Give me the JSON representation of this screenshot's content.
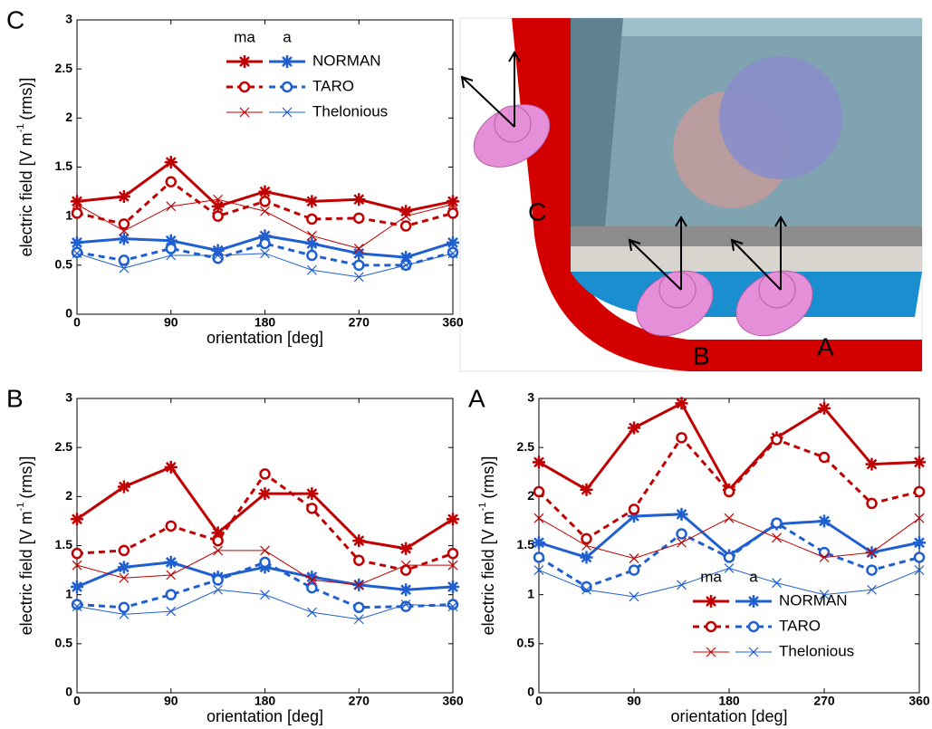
{
  "chart_data": [
    {
      "type": "line",
      "panel_label": "C",
      "x_label": "orientation [deg]",
      "y_label": {
        "text": "electric field [V m",
        "sup": "-1",
        "tail": "(rms)]"
      },
      "x": [
        0,
        45,
        90,
        135,
        180,
        225,
        270,
        315,
        360
      ],
      "xlim": [
        0,
        360
      ],
      "xticks": [
        0,
        90,
        180,
        270,
        360
      ],
      "ylim": [
        0,
        3
      ],
      "yticks": [
        0,
        0.5,
        1,
        1.5,
        2,
        2.5,
        3
      ],
      "legend": "upper right",
      "legend_columns": [
        {
          "label": "ma",
          "color": "#c00000"
        },
        {
          "label": "a",
          "color": "#1f5fd0"
        }
      ],
      "series": [
        {
          "name": "NORMAN",
          "marker": "star",
          "dash": "solid",
          "width": 3,
          "values": [
            [
              1.15,
              1.2,
              1.55,
              1.1,
              1.25,
              1.15,
              1.17,
              1.05,
              1.15
            ],
            [
              0.73,
              0.77,
              0.75,
              0.65,
              0.8,
              0.72,
              0.62,
              0.58,
              0.73
            ]
          ]
        },
        {
          "name": "TARO",
          "marker": "circle",
          "dash": "dashed",
          "width": 3,
          "values": [
            [
              1.03,
              0.92,
              1.35,
              1.0,
              1.15,
              0.97,
              0.98,
              0.9,
              1.03
            ],
            [
              0.63,
              0.55,
              0.67,
              0.57,
              0.72,
              0.6,
              0.5,
              0.5,
              0.63
            ]
          ]
        },
        {
          "name": "Thelonious",
          "marker": "x",
          "dash": "solid",
          "width": 1,
          "values": [
            [
              1.12,
              0.85,
              1.1,
              1.17,
              1.05,
              0.8,
              0.67,
              1.0,
              1.12
            ],
            [
              0.62,
              0.47,
              0.6,
              0.6,
              0.62,
              0.45,
              0.38,
              0.5,
              0.62
            ]
          ]
        }
      ]
    },
    {
      "type": "line",
      "panel_label": "B",
      "x_label": "orientation [deg]",
      "y_label": {
        "text": "electric field [V m",
        "sup": "-1",
        "tail": "(rms)]"
      },
      "x": [
        0,
        45,
        90,
        135,
        180,
        225,
        270,
        315,
        360
      ],
      "xlim": [
        0,
        360
      ],
      "xticks": [
        0,
        90,
        180,
        270,
        360
      ],
      "ylim": [
        0,
        3
      ],
      "yticks": [
        0,
        0.5,
        1,
        1.5,
        2,
        2.5,
        3
      ],
      "legend_columns": [
        {
          "label": null,
          "color": "#c00000"
        },
        {
          "label": null,
          "color": "#1f5fd0"
        }
      ],
      "series": [
        {
          "name": null,
          "marker": "star",
          "dash": "solid",
          "width": 3,
          "values": [
            [
              1.77,
              2.1,
              2.3,
              1.63,
              2.03,
              2.03,
              1.55,
              1.47,
              1.77
            ],
            [
              1.08,
              1.28,
              1.33,
              1.18,
              1.28,
              1.18,
              1.1,
              1.05,
              1.08
            ]
          ]
        },
        {
          "name": null,
          "marker": "circle",
          "dash": "dashed",
          "width": 3,
          "values": [
            [
              1.42,
              1.45,
              1.7,
              1.55,
              2.23,
              1.88,
              1.35,
              1.25,
              1.42
            ],
            [
              0.9,
              0.87,
              1.0,
              1.15,
              1.33,
              1.07,
              0.87,
              0.88,
              0.9
            ]
          ]
        },
        {
          "name": null,
          "marker": "x",
          "dash": "solid",
          "width": 1,
          "values": [
            [
              1.3,
              1.17,
              1.2,
              1.45,
              1.45,
              1.15,
              1.1,
              1.3,
              1.3
            ],
            [
              0.88,
              0.8,
              0.83,
              1.05,
              1.0,
              0.82,
              0.75,
              0.9,
              0.88
            ]
          ]
        }
      ]
    },
    {
      "type": "line",
      "panel_label": "A",
      "x_label": "orientation [deg]",
      "y_label": {
        "text": "electric field [V m",
        "sup": "-1",
        "tail": "(rms)]"
      },
      "x": [
        0,
        45,
        90,
        135,
        180,
        225,
        270,
        315,
        360
      ],
      "xlim": [
        0,
        360
      ],
      "xticks": [
        0,
        90,
        180,
        270,
        360
      ],
      "ylim": [
        0,
        3
      ],
      "yticks": [
        0,
        0.5,
        1,
        1.5,
        2,
        2.5,
        3
      ],
      "legend": "lower right",
      "legend_columns": [
        {
          "label": "ma",
          "color": "#c00000"
        },
        {
          "label": "a",
          "color": "#1f5fd0"
        }
      ],
      "series": [
        {
          "name": "NORMAN",
          "marker": "star",
          "dash": "solid",
          "width": 3,
          "values": [
            [
              2.35,
              2.07,
              2.7,
              2.95,
              2.07,
              2.6,
              2.9,
              2.33,
              2.35
            ],
            [
              1.53,
              1.38,
              1.8,
              1.82,
              1.4,
              1.72,
              1.75,
              1.43,
              1.53
            ]
          ]
        },
        {
          "name": "TARO",
          "marker": "circle",
          "dash": "dashed",
          "width": 3,
          "values": [
            [
              2.05,
              1.57,
              1.87,
              2.6,
              2.05,
              2.58,
              2.4,
              1.93,
              2.05
            ],
            [
              1.38,
              1.08,
              1.25,
              1.62,
              1.38,
              1.73,
              1.43,
              1.25,
              1.38
            ]
          ]
        },
        {
          "name": "Thelonious",
          "marker": "x",
          "dash": "solid",
          "width": 1,
          "values": [
            [
              1.78,
              1.5,
              1.37,
              1.53,
              1.78,
              1.58,
              1.38,
              1.43,
              1.78
            ],
            [
              1.25,
              1.05,
              0.98,
              1.1,
              1.27,
              1.12,
              1.0,
              1.05,
              1.25
            ]
          ]
        }
      ]
    }
  ],
  "illustration": {
    "labels": [
      "C",
      "B",
      "A"
    ]
  }
}
